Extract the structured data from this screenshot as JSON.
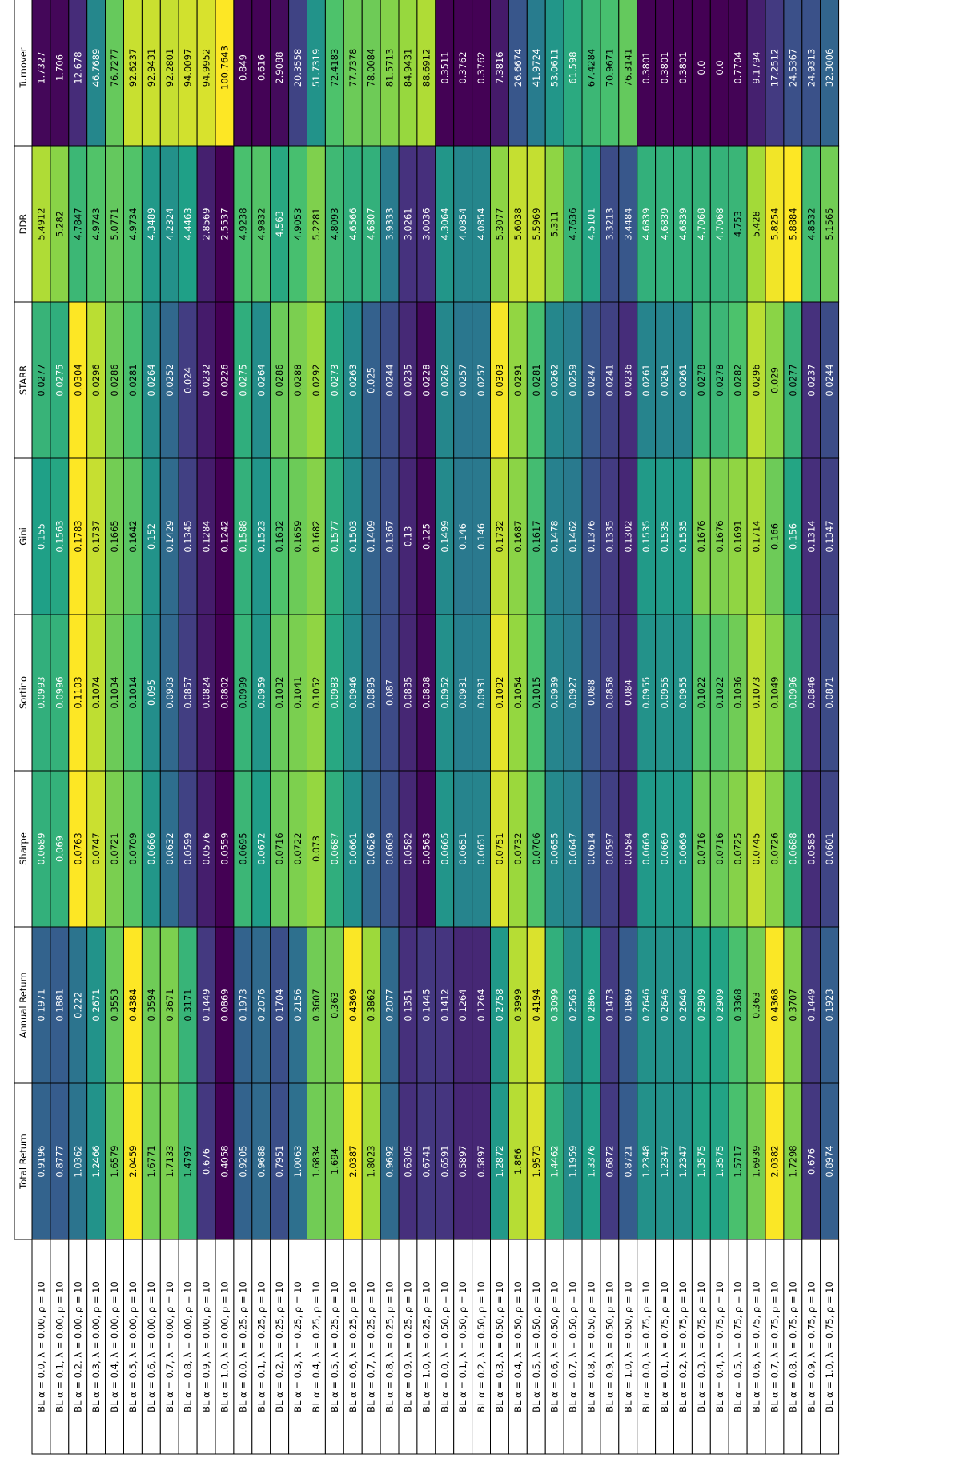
{
  "chart_data": {
    "type": "table",
    "orientation": "rotated-90-ccw",
    "colormap": "viridis",
    "colormap_stops": [
      "#440154",
      "#46327e",
      "#365c8d",
      "#277f8e",
      "#1fa187",
      "#4ac16d",
      "#a0da39",
      "#fde725"
    ],
    "header_fill": "#ffffff",
    "label_fill": "#ffffff",
    "light_text": "#ffffff",
    "dark_text": "#000000",
    "row_label_header": "",
    "columns": [
      "Total Return",
      "Annual Return",
      "Sharpe",
      "Sortino",
      "Gini",
      "STARR",
      "DDR",
      "Turnover"
    ],
    "rows": [
      "BL α = 0.0, λ = 0.00, ρ = 10",
      "BL α = 0.1, λ = 0.00, ρ = 10",
      "BL α = 0.2, λ = 0.00, ρ = 10",
      "BL α = 0.3, λ = 0.00, ρ = 10",
      "BL α = 0.4, λ = 0.00, ρ = 10",
      "BL α = 0.5, λ = 0.00, ρ = 10",
      "BL α = 0.6, λ = 0.00, ρ = 10",
      "BL α = 0.7, λ = 0.00, ρ = 10",
      "BL α = 0.8, λ = 0.00, ρ = 10",
      "BL α = 0.9, λ = 0.00, ρ = 10",
      "BL α = 1.0, λ = 0.00, ρ = 10",
      "BL α = 0.0, λ = 0.25, ρ = 10",
      "BL α = 0.1, λ = 0.25, ρ = 10",
      "BL α = 0.2, λ = 0.25, ρ = 10",
      "BL α = 0.3, λ = 0.25, ρ = 10",
      "BL α = 0.4, λ = 0.25, ρ = 10",
      "BL α = 0.5, λ = 0.25, ρ = 10",
      "BL α = 0.6, λ = 0.25, ρ = 10",
      "BL α = 0.7, λ = 0.25, ρ = 10",
      "BL α = 0.8, λ = 0.25, ρ = 10",
      "BL α = 0.9, λ = 0.25, ρ = 10",
      "BL α = 1.0, λ = 0.25, ρ = 10",
      "BL α = 0.0, λ = 0.50, ρ = 10",
      "BL α = 0.1, λ = 0.50, ρ = 10",
      "BL α = 0.2, λ = 0.50, ρ = 10",
      "BL α = 0.3, λ = 0.50, ρ = 10",
      "BL α = 0.4, λ = 0.50, ρ = 10",
      "BL α = 0.5, λ = 0.50, ρ = 10",
      "BL α = 0.6, λ = 0.50, ρ = 10",
      "BL α = 0.7, λ = 0.50, ρ = 10",
      "BL α = 0.8, λ = 0.50, ρ = 10",
      "BL α = 0.9, λ = 0.50, ρ = 10",
      "BL α = 1.0, λ = 0.50, ρ = 10",
      "BL α = 0.0, λ = 0.75, ρ = 10",
      "BL α = 0.1, λ = 0.75, ρ = 10",
      "BL α = 0.2, λ = 0.75, ρ = 10",
      "BL α = 0.3, λ = 0.75, ρ = 10",
      "BL α = 0.4, λ = 0.75, ρ = 10",
      "BL α = 0.5, λ = 0.75, ρ = 10",
      "BL α = 0.6, λ = 0.75, ρ = 10",
      "BL α = 0.7, λ = 0.75, ρ = 10",
      "BL α = 0.8, λ = 0.75, ρ = 10",
      "BL α = 0.9, λ = 0.75, ρ = 10",
      "BL α = 1.0, λ = 0.75, ρ = 10"
    ],
    "values": [
      [
        "0.9196",
        "0.1971",
        "0.0689",
        "0.0993",
        "0.155",
        "0.0277",
        "5.4912",
        "1.7327"
      ],
      [
        "0.8777",
        "0.1881",
        "0.069",
        "0.0996",
        "0.1563",
        "0.0275",
        "5.282",
        "1.706"
      ],
      [
        "1.0362",
        "0.222",
        "0.0763",
        "0.1103",
        "0.1783",
        "0.0304",
        "4.7847",
        "12.678"
      ],
      [
        "1.2466",
        "0.2671",
        "0.0747",
        "0.1074",
        "0.1737",
        "0.0296",
        "4.9743",
        "46.7689"
      ],
      [
        "1.6579",
        "0.3553",
        "0.0721",
        "0.1034",
        "0.1665",
        "0.0286",
        "5.0771",
        "76.7277"
      ],
      [
        "2.0459",
        "0.4384",
        "0.0709",
        "0.1014",
        "0.1642",
        "0.0281",
        "4.9734",
        "92.6237"
      ],
      [
        "1.6771",
        "0.3594",
        "0.0666",
        "0.095",
        "0.152",
        "0.0264",
        "4.3489",
        "92.9431"
      ],
      [
        "1.7133",
        "0.3671",
        "0.0632",
        "0.0903",
        "0.1429",
        "0.0252",
        "4.2324",
        "92.2801"
      ],
      [
        "1.4797",
        "0.3171",
        "0.0599",
        "0.0857",
        "0.1345",
        "0.024",
        "4.4463",
        "94.0097"
      ],
      [
        "0.676",
        "0.1449",
        "0.0576",
        "0.0824",
        "0.1284",
        "0.0232",
        "2.8569",
        "94.9952"
      ],
      [
        "0.4058",
        "0.0869",
        "0.0559",
        "0.0802",
        "0.1242",
        "0.0226",
        "2.5537",
        "100.7643"
      ],
      [
        "0.9205",
        "0.1973",
        "0.0695",
        "0.0999",
        "0.1588",
        "0.0275",
        "4.9238",
        "0.849"
      ],
      [
        "0.9688",
        "0.2076",
        "0.0672",
        "0.0959",
        "0.1523",
        "0.0264",
        "4.9832",
        "0.616"
      ],
      [
        "0.7951",
        "0.1704",
        "0.0716",
        "0.1032",
        "0.1632",
        "0.0286",
        "4.563",
        "2.9088"
      ],
      [
        "1.0063",
        "0.2156",
        "0.0722",
        "0.1041",
        "0.1659",
        "0.0288",
        "4.9053",
        "20.3558"
      ],
      [
        "1.6834",
        "0.3607",
        "0.073",
        "0.1052",
        "0.1682",
        "0.0292",
        "5.2281",
        "51.7319"
      ],
      [
        "1.694",
        "0.363",
        "0.0687",
        "0.0983",
        "0.1577",
        "0.0273",
        "4.8093",
        "72.4183"
      ],
      [
        "2.0387",
        "0.4369",
        "0.0661",
        "0.0946",
        "0.1503",
        "0.0263",
        "4.6566",
        "77.7378"
      ],
      [
        "1.8023",
        "0.3862",
        "0.0626",
        "0.0895",
        "0.1409",
        "0.025",
        "4.6807",
        "78.0084"
      ],
      [
        "0.9692",
        "0.2077",
        "0.0609",
        "0.087",
        "0.1367",
        "0.0244",
        "3.9333",
        "81.5713"
      ],
      [
        "0.6305",
        "0.1351",
        "0.0582",
        "0.0835",
        "0.13",
        "0.0235",
        "3.0261",
        "84.9431"
      ],
      [
        "0.6741",
        "0.1445",
        "0.0563",
        "0.0808",
        "0.125",
        "0.0228",
        "3.0036",
        "88.6912"
      ],
      [
        "0.6591",
        "0.1412",
        "0.0665",
        "0.0952",
        "0.1499",
        "0.0262",
        "4.3064",
        "0.3511"
      ],
      [
        "0.5897",
        "0.1264",
        "0.0651",
        "0.0931",
        "0.146",
        "0.0257",
        "4.0854",
        "0.3762"
      ],
      [
        "0.5897",
        "0.1264",
        "0.0651",
        "0.0931",
        "0.146",
        "0.0257",
        "4.0854",
        "0.3762"
      ],
      [
        "1.2872",
        "0.2758",
        "0.0751",
        "0.1092",
        "0.1732",
        "0.0303",
        "5.3077",
        "7.3816"
      ],
      [
        "1.866",
        "0.3999",
        "0.0732",
        "0.1054",
        "0.1687",
        "0.0291",
        "5.6038",
        "26.6674"
      ],
      [
        "1.9573",
        "0.4194",
        "0.0706",
        "0.1015",
        "0.1617",
        "0.0281",
        "5.5969",
        "41.9724"
      ],
      [
        "1.4462",
        "0.3099",
        "0.0655",
        "0.0939",
        "0.1478",
        "0.0262",
        "5.311",
        "53.0611"
      ],
      [
        "1.1959",
        "0.2563",
        "0.0647",
        "0.0927",
        "0.1462",
        "0.0259",
        "4.7636",
        "61.598"
      ],
      [
        "1.3376",
        "0.2866",
        "0.0614",
        "0.088",
        "0.1376",
        "0.0247",
        "4.5101",
        "67.4284"
      ],
      [
        "0.6872",
        "0.1473",
        "0.0597",
        "0.0858",
        "0.1335",
        "0.0241",
        "3.3213",
        "70.9671"
      ],
      [
        "0.8721",
        "0.1869",
        "0.0584",
        "0.084",
        "0.1302",
        "0.0236",
        "3.4484",
        "76.3141"
      ],
      [
        "1.2348",
        "0.2646",
        "0.0669",
        "0.0955",
        "0.1535",
        "0.0261",
        "4.6839",
        "0.3801"
      ],
      [
        "1.2347",
        "0.2646",
        "0.0669",
        "0.0955",
        "0.1535",
        "0.0261",
        "4.6839",
        "0.3801"
      ],
      [
        "1.2347",
        "0.2646",
        "0.0669",
        "0.0955",
        "0.1535",
        "0.0261",
        "4.6839",
        "0.3801"
      ],
      [
        "1.3575",
        "0.2909",
        "0.0716",
        "0.1022",
        "0.1676",
        "0.0278",
        "4.7068",
        "0.0"
      ],
      [
        "1.3575",
        "0.2909",
        "0.0716",
        "0.1022",
        "0.1676",
        "0.0278",
        "4.7068",
        "0.0"
      ],
      [
        "1.5717",
        "0.3368",
        "0.0725",
        "0.1036",
        "0.1691",
        "0.0282",
        "4.753",
        "0.7704"
      ],
      [
        "1.6939",
        "0.363",
        "0.0745",
        "0.1073",
        "0.1714",
        "0.0296",
        "5.428",
        "9.1794"
      ],
      [
        "2.0382",
        "0.4368",
        "0.0726",
        "0.1049",
        "0.166",
        "0.029",
        "5.8254",
        "17.2512"
      ],
      [
        "1.7298",
        "0.3707",
        "0.0688",
        "0.0996",
        "0.156",
        "0.0277",
        "5.8884",
        "24.5367"
      ],
      [
        "0.676",
        "0.1449",
        "0.0585",
        "0.0846",
        "0.1314",
        "0.0237",
        "4.8532",
        "24.9313"
      ],
      [
        "0.8974",
        "0.1923",
        "0.0601",
        "0.0871",
        "0.1347",
        "0.0244",
        "5.1565",
        "32.3006"
      ]
    ]
  }
}
